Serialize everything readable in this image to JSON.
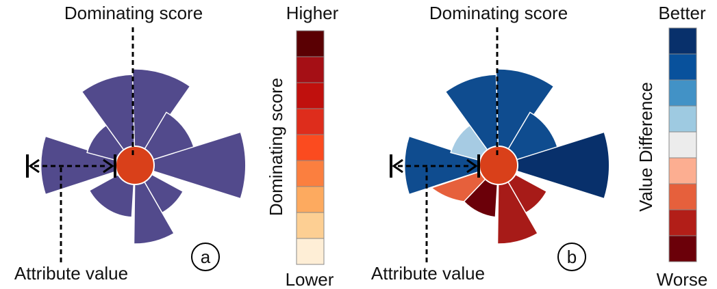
{
  "panel_a": {
    "top_label": "Dominating score",
    "bottom_label": "Attribute value",
    "tag": "a",
    "petal_color": "#524a8c",
    "center_color": "#d9401a"
  },
  "legend_a": {
    "top": "Higher",
    "bottom": "Lower",
    "axis_label": "Dominating score",
    "colors": [
      "#5a0003",
      "#a50f15",
      "#c0100d",
      "#de2d1c",
      "#fb4b1f",
      "#fb7f3f",
      "#fdaa5f",
      "#fdcf93",
      "#feeed6"
    ]
  },
  "panel_b": {
    "top_label": "Dominating score",
    "bottom_label": "Attribute value",
    "tag": "b",
    "center_color": "#d9401a"
  },
  "legend_b": {
    "top": "Better",
    "bottom": "Worse",
    "axis_label": "Value Difference",
    "colors": [
      "#08306b",
      "#08519c",
      "#4292c6",
      "#9ecae1",
      "#ececec",
      "#fcae91",
      "#e6603c",
      "#b21e18",
      "#6b0009"
    ]
  }
}
